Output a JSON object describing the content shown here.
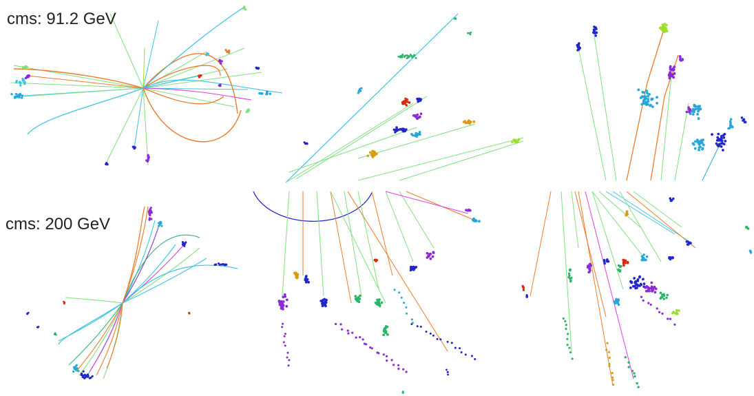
{
  "panels": {
    "top": {
      "energy_label": "cms: 91.2 GeV"
    },
    "bottom": {
      "energy_label": "cms: 200 GeV"
    }
  },
  "palette": {
    "orange": "#ee7a2a",
    "light_green": "#7fe07f",
    "cyan": "#3cc4e6",
    "blue": "#2226c8",
    "green": "#2bb56a",
    "purple": "#8a2bd6",
    "magenta": "#e03ce0",
    "red": "#d82a10",
    "gold": "#d99a14",
    "sky": "#27a6da",
    "yellow_green": "#9be028"
  }
}
